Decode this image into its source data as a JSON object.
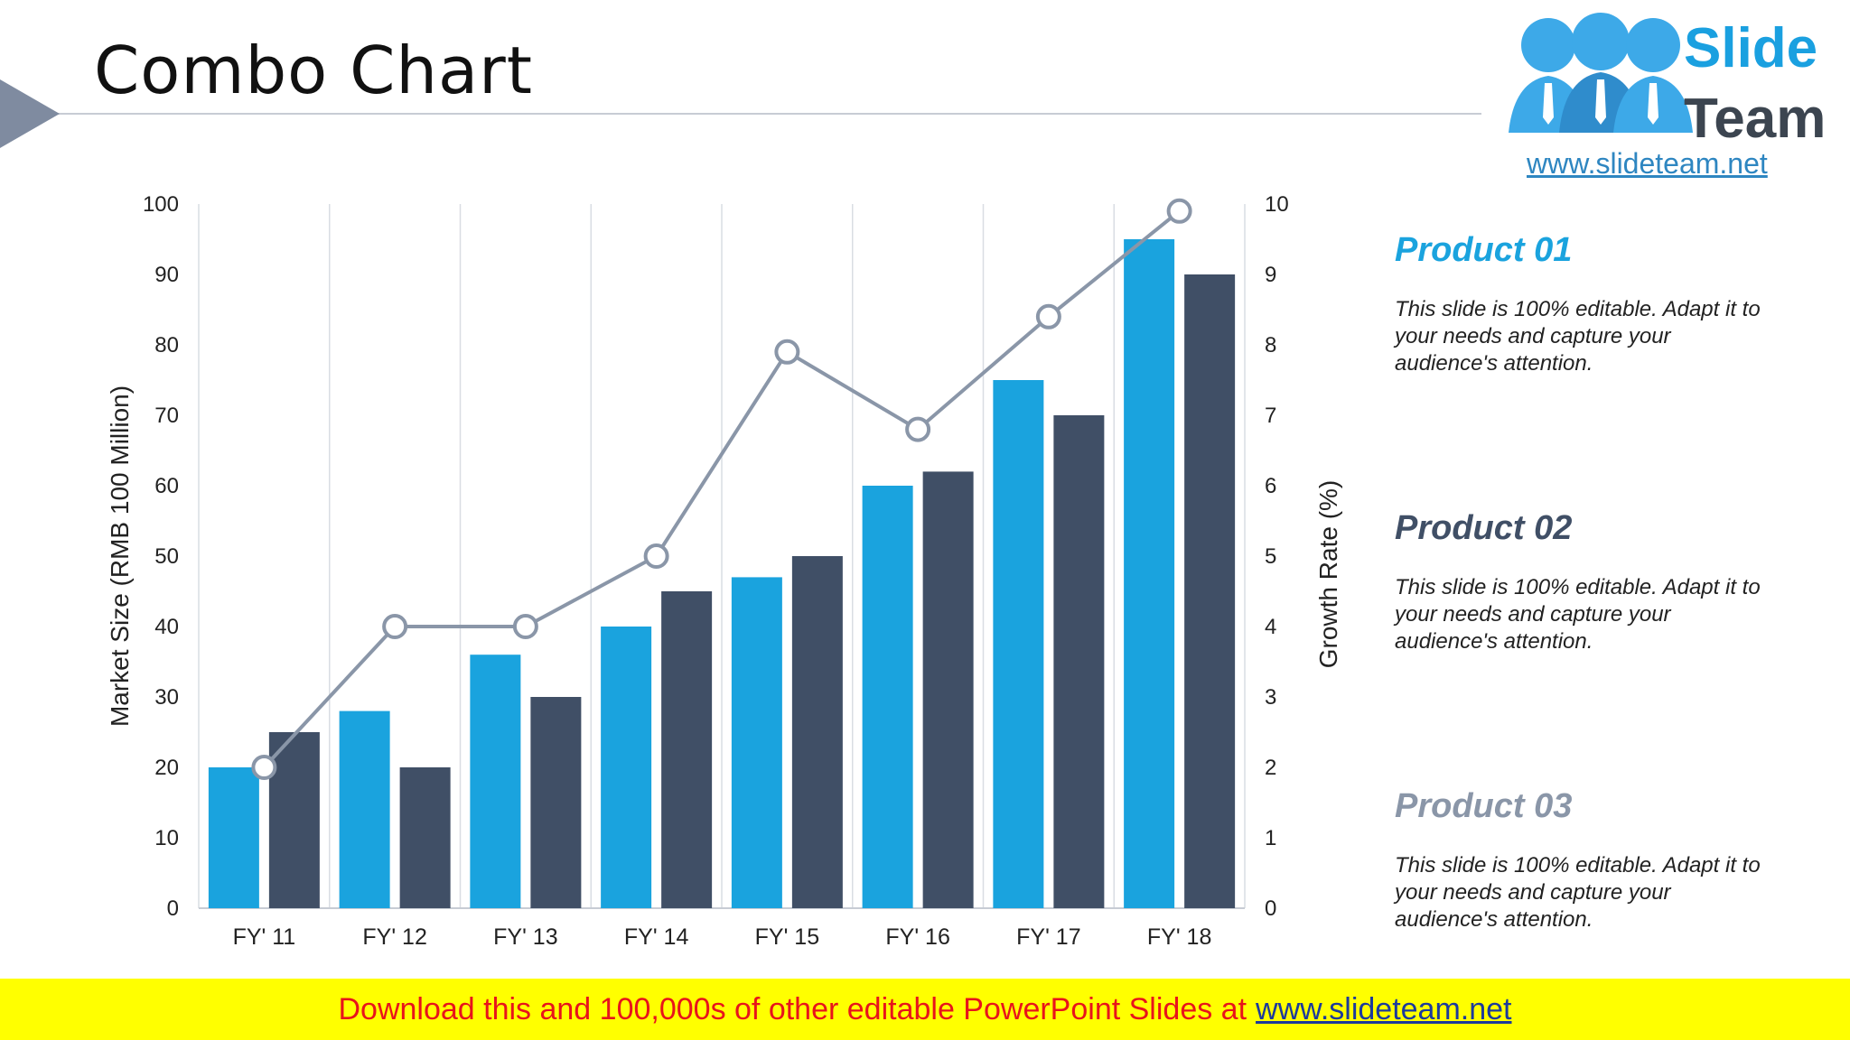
{
  "slide": {
    "title": "Combo Chart"
  },
  "chart_data": {
    "type": "bar",
    "categories": [
      "FY' 11",
      "FY' 12",
      "FY' 13",
      "FY' 14",
      "FY' 15",
      "FY' 16",
      "FY' 17",
      "FY' 18"
    ],
    "series": [
      {
        "type": "bar",
        "axis": "left",
        "color": "#1aa3de",
        "values": [
          20,
          28,
          36,
          40,
          47,
          60,
          75,
          95
        ]
      },
      {
        "type": "bar",
        "axis": "left",
        "color": "#404f66",
        "values": [
          25,
          20,
          30,
          45,
          50,
          62,
          70,
          90
        ]
      },
      {
        "type": "line",
        "axis": "right",
        "color": "#8a96a8",
        "values": [
          2,
          4,
          4,
          5,
          7.9,
          6.8,
          8.4,
          9.9
        ]
      }
    ],
    "ylabel": "Market Size (RMB 100 Million)",
    "y2label": "Growth Rate (%)",
    "ylim": [
      0,
      100
    ],
    "y2lim": [
      0,
      10
    ],
    "yticks": [
      "0",
      "10",
      "20",
      "30",
      "40",
      "50",
      "60",
      "70",
      "80",
      "90",
      "100"
    ],
    "y2ticks": [
      "0",
      "1",
      "2",
      "3",
      "4",
      "5",
      "6",
      "7",
      "8",
      "9",
      "10"
    ],
    "grid": "vertical"
  },
  "products": [
    {
      "title": "Product 01",
      "color": "#1aa3de",
      "desc": "This slide is 100% editable. Adapt it to your needs and capture your audience's attention."
    },
    {
      "title": "Product 02",
      "color": "#404f66",
      "desc": "This slide is 100% editable. Adapt it to your needs and capture your audience's attention."
    },
    {
      "title": "Product 03",
      "color": "#8a96a8",
      "desc": "This slide is 100% editable. Adapt it to your needs and capture your audience's attention."
    }
  ],
  "logo": {
    "line1": "Slide",
    "line2": "Team",
    "url": "www.slideteam.net",
    "icon": "people-icon"
  },
  "footer": {
    "text": "Download this and 100,000s of other editable PowerPoint Slides at",
    "link": "www.slideteam.net"
  }
}
